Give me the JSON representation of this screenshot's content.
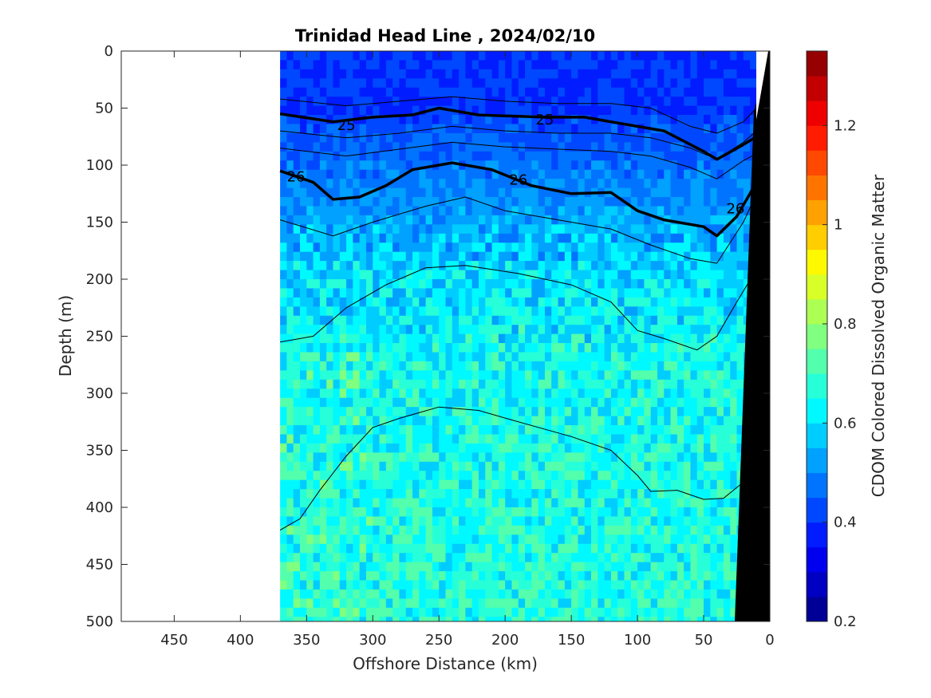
{
  "chart_data": {
    "type": "heatmap",
    "title": "Trinidad Head Line , 2024/02/10",
    "xlabel": "Offshore Distance (km)",
    "ylabel": "Depth (m)",
    "colorbar_label": "CDOM Colored Dissolved Organic Matter",
    "xlim": [
      490,
      0
    ],
    "ylim": [
      0,
      500
    ],
    "x_ticks": [
      "450",
      "400",
      "350",
      "300",
      "250",
      "200",
      "150",
      "100",
      "50",
      "0"
    ],
    "y_ticks": [
      "0",
      "50",
      "100",
      "150",
      "200",
      "250",
      "300",
      "350",
      "400",
      "450",
      "500"
    ],
    "colorbar_ticks": [
      "0.2",
      "0.4",
      "0.6",
      "0.8",
      "1",
      "1.2"
    ],
    "colorbar_range": [
      0.2,
      1.35
    ],
    "colormap": "jet",
    "data_extent_x": [
      370,
      0
    ],
    "surface_layer": {
      "depth_range": [
        0,
        55
      ],
      "value": 0.4
    },
    "field_profile": [
      {
        "depth": 0,
        "value": 0.4
      },
      {
        "depth": 60,
        "value": 0.42
      },
      {
        "depth": 100,
        "value": 0.47
      },
      {
        "depth": 140,
        "value": 0.52
      },
      {
        "depth": 200,
        "value": 0.6
      },
      {
        "depth": 280,
        "value": 0.64
      },
      {
        "depth": 400,
        "value": 0.66
      },
      {
        "depth": 500,
        "value": 0.67
      }
    ],
    "density_contours": [
      {
        "label": "25",
        "bold": true,
        "x": [
          370,
          330,
          300,
          270,
          250,
          220,
          170,
          140,
          120,
          100,
          80,
          50,
          40,
          20,
          10
        ],
        "y": [
          55,
          62,
          58,
          56,
          50,
          56,
          58,
          58,
          62,
          66,
          70,
          88,
          95,
          82,
          75
        ]
      },
      {
        "label": "26",
        "bold": true,
        "x": [
          370,
          345,
          330,
          310,
          290,
          270,
          240,
          210,
          180,
          150,
          120,
          100,
          80,
          50,
          40,
          25,
          10
        ],
        "y": [
          105,
          115,
          130,
          128,
          118,
          104,
          98,
          104,
          118,
          125,
          124,
          140,
          148,
          154,
          162,
          145,
          115
        ]
      }
    ],
    "contour_labels": [
      {
        "text": "25",
        "x": 320,
        "y": 65
      },
      {
        "text": "25",
        "x": 170,
        "y": 60
      },
      {
        "text": "26",
        "x": 358,
        "y": 110
      },
      {
        "text": "26",
        "x": 190,
        "y": 113
      },
      {
        "text": "26",
        "x": 26,
        "y": 138
      }
    ],
    "thin_contours": [
      {
        "x": [
          370,
          320,
          280,
          240,
          200,
          160,
          120,
          90,
          60,
          40,
          20,
          10
        ],
        "y": [
          42,
          48,
          44,
          40,
          44,
          46,
          46,
          50,
          66,
          72,
          62,
          50
        ]
      },
      {
        "x": [
          370,
          320,
          280,
          240,
          200,
          160,
          120,
          90,
          60,
          40,
          20,
          10
        ],
        "y": [
          70,
          76,
          72,
          66,
          70,
          72,
          72,
          76,
          85,
          95,
          80,
          70
        ]
      },
      {
        "x": [
          370,
          320,
          280,
          240,
          200,
          160,
          120,
          90,
          60,
          40,
          20,
          10
        ],
        "y": [
          85,
          92,
          86,
          80,
          84,
          86,
          88,
          92,
          102,
          112,
          96,
          90
        ]
      },
      {
        "x": [
          370,
          330,
          300,
          260,
          230,
          200,
          160,
          120,
          90,
          60,
          40,
          20,
          8
        ],
        "y": [
          148,
          162,
          150,
          136,
          128,
          140,
          148,
          156,
          170,
          182,
          186,
          150,
          120
        ]
      },
      {
        "x": [
          370,
          345,
          320,
          290,
          260,
          230,
          190,
          150,
          120,
          100,
          80,
          55,
          40,
          25,
          12
        ],
        "y": [
          255,
          250,
          225,
          205,
          190,
          188,
          195,
          205,
          220,
          245,
          252,
          262,
          250,
          220,
          195
        ]
      },
      {
        "x": [
          370,
          355,
          340,
          320,
          300,
          280,
          250,
          220,
          190,
          150,
          120,
          100,
          90,
          70,
          50,
          35,
          20
        ],
        "y": [
          420,
          410,
          385,
          355,
          330,
          322,
          312,
          315,
          325,
          338,
          350,
          372,
          386,
          385,
          393,
          392,
          378
        ]
      }
    ],
    "bathymetry": {
      "x": [
        0,
        30,
        20,
        10,
        0
      ],
      "y": [
        0,
        500,
        380,
        200,
        40
      ],
      "fill": "#000000"
    }
  }
}
